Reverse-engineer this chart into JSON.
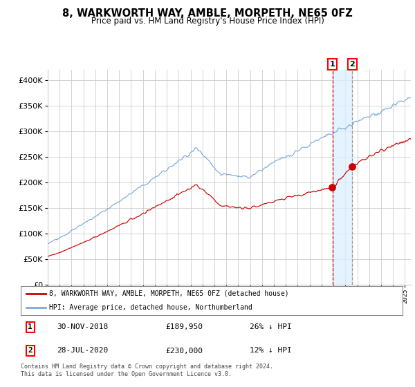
{
  "title": "8, WARKWORTH WAY, AMBLE, MORPETH, NE65 0FZ",
  "subtitle": "Price paid vs. HM Land Registry's House Price Index (HPI)",
  "ytick_values": [
    0,
    50000,
    100000,
    150000,
    200000,
    250000,
    300000,
    350000,
    400000
  ],
  "ylim": [
    0,
    420000
  ],
  "xlim_start": 1995.0,
  "xlim_end": 2025.5,
  "sale1_date": 2018.917,
  "sale1_price": 189950,
  "sale2_date": 2020.583,
  "sale2_price": 230000,
  "red_line_color": "#cc0000",
  "blue_line_color": "#7aaadd",
  "dot_color": "#cc0000",
  "grid_color": "#cccccc",
  "vline1_color": "#cc0000",
  "vline2_color": "#999999",
  "shade_color": "#ddeeff",
  "legend_label_red": "8, WARKWORTH WAY, AMBLE, MORPETH, NE65 0FZ (detached house)",
  "legend_label_blue": "HPI: Average price, detached house, Northumberland",
  "footnote": "Contains HM Land Registry data © Crown copyright and database right 2024.\nThis data is licensed under the Open Government Licence v3.0.",
  "background_color": "#ffffff"
}
